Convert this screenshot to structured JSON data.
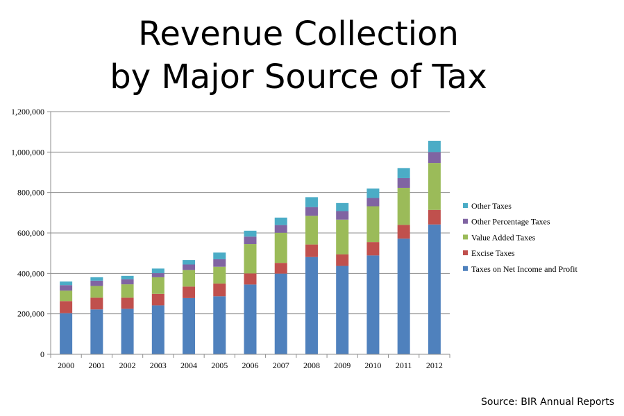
{
  "title_line1": "Revenue Collection",
  "title_line2": "by Major Source of Tax",
  "source": "Source: BIR Annual Reports",
  "chart_data": {
    "type": "bar",
    "stacked": true,
    "categories": [
      "2000",
      "2001",
      "2002",
      "2003",
      "2004",
      "2005",
      "2006",
      "2007",
      "2008",
      "2009",
      "2010",
      "2011",
      "2012"
    ],
    "series": [
      {
        "name": "Taxes on Net Income and Profit",
        "color": "#4f81bd",
        "values": [
          203000,
          222000,
          225000,
          242000,
          278000,
          287000,
          345000,
          399000,
          481000,
          437000,
          489000,
          572000,
          642000
        ]
      },
      {
        "name": "Excise Taxes",
        "color": "#c0504d",
        "values": [
          60000,
          58000,
          55000,
          57000,
          57000,
          63000,
          55000,
          53000,
          62000,
          57000,
          66000,
          68000,
          72000
        ]
      },
      {
        "name": "Value Added Taxes",
        "color": "#9bbb59",
        "values": [
          52000,
          58000,
          66000,
          82000,
          82000,
          83000,
          145000,
          149000,
          142000,
          172000,
          177000,
          183000,
          232000
        ]
      },
      {
        "name": "Other Percentage Taxes",
        "color": "#8064a2",
        "values": [
          27000,
          26000,
          25000,
          20000,
          27000,
          37000,
          37000,
          38000,
          43000,
          42000,
          41000,
          48000,
          54000
        ]
      },
      {
        "name": "Other Taxes",
        "color": "#4bacc6",
        "values": [
          18000,
          17000,
          17000,
          23000,
          22000,
          33000,
          29000,
          37000,
          49000,
          40000,
          47000,
          50000,
          56000
        ]
      }
    ],
    "ylim": [
      0,
      1200000
    ],
    "yticks": [
      "0",
      "200,000",
      "400,000",
      "600,000",
      "800,000",
      "1,000,000",
      "1,200,000"
    ],
    "grid": true,
    "legend_position": "right"
  }
}
